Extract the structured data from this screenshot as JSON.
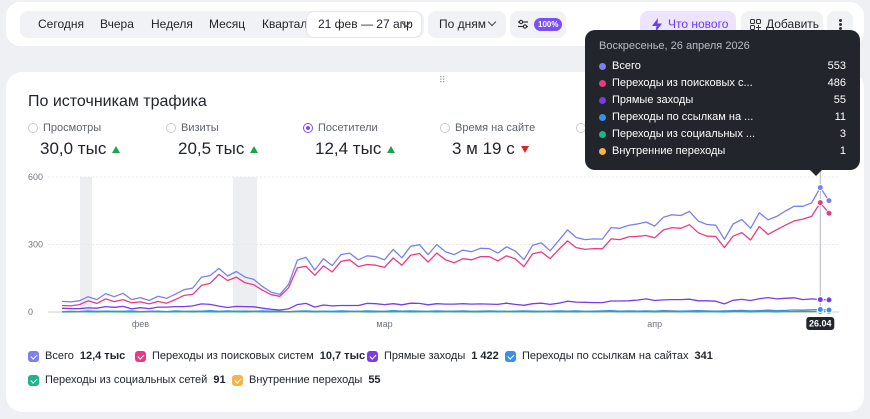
{
  "toolbar": {
    "periods": [
      "Сегодня",
      "Вчера",
      "Неделя",
      "Месяц",
      "Квартал"
    ],
    "date_range": "21 фев — 27 апр",
    "detail": "По дням",
    "sample_badge": "100%",
    "whats_new": "Что нового",
    "add": "Добавить"
  },
  "card": {
    "title": "По источникам трафика",
    "metrics": [
      {
        "label": "Просмотры",
        "value": "30,0 тыс",
        "trend": "up",
        "selected": false
      },
      {
        "label": "Визиты",
        "value": "20,5 тыс",
        "trend": "up",
        "selected": false
      },
      {
        "label": "Посетители",
        "value": "12,4 тыс",
        "trend": "up",
        "selected": true
      },
      {
        "label": "Время на сайте",
        "value": "3 м 19 с",
        "trend": "down",
        "selected": false
      }
    ]
  },
  "chart_data": {
    "type": "line",
    "y_ticks": [
      "0",
      "300",
      "600"
    ],
    "x_ticks": [
      "фев",
      "мар",
      "апр"
    ],
    "ylim": [
      0,
      600
    ],
    "hover_date_tag": "26.04",
    "series": [
      {
        "name": "Всего",
        "color": "#7b7ff0",
        "values": [
          47,
          45,
          50,
          68,
          55,
          82,
          68,
          83,
          55,
          64,
          51,
          70,
          61,
          79,
          99,
          106,
          155,
          162,
          194,
          160,
          180,
          155,
          145,
          113,
          88,
          78,
          123,
          230,
          243,
          186,
          237,
          206,
          255,
          262,
          232,
          250,
          246,
          232,
          278,
          241,
          292,
          299,
          255,
          300,
          268,
          255,
          275,
          268,
          283,
          282,
          262,
          290,
          271,
          233,
          297,
          307,
          272,
          318,
          365,
          331,
          322,
          325,
          324,
          375,
          372,
          385,
          391,
          400,
          382,
          421,
          432,
          429,
          447,
          404,
          389,
          386,
          323,
          391,
          411,
          372,
          441,
          410,
          425,
          449,
          470,
          470,
          485,
          553,
          495
        ]
      },
      {
        "name": "Переходы из поисковых систем",
        "color": "#ea3a84",
        "values": [
          29,
          27,
          33,
          50,
          38,
          58,
          46,
          55,
          41,
          45,
          36,
          47,
          39,
          55,
          74,
          78,
          118,
          128,
          167,
          140,
          155,
          130,
          121,
          97,
          77,
          70,
          108,
          196,
          203,
          163,
          205,
          178,
          225,
          232,
          202,
          211,
          208,
          198,
          240,
          208,
          252,
          260,
          222,
          262,
          232,
          219,
          237,
          232,
          246,
          246,
          227,
          250,
          236,
          202,
          259,
          267,
          237,
          278,
          316,
          286,
          278,
          282,
          281,
          325,
          322,
          334,
          336,
          340,
          330,
          365,
          375,
          372,
          388,
          352,
          337,
          336,
          286,
          337,
          353,
          320,
          380,
          345,
          366,
          386,
          405,
          413,
          425,
          486,
          439
        ]
      },
      {
        "name": "Прямые заходы",
        "color": "#7a3ce8",
        "values": [
          17,
          15,
          15,
          18,
          17,
          24,
          21,
          25,
          14,
          19,
          15,
          22,
          22,
          24,
          24,
          27,
          36,
          34,
          26,
          20,
          25,
          24,
          23,
          17,
          12,
          9,
          14,
          33,
          38,
          22,
          31,
          27,
          29,
          29,
          29,
          38,
          37,
          33,
          37,
          32,
          39,
          38,
          32,
          37,
          35,
          35,
          37,
          35,
          36,
          35,
          34,
          39,
          34,
          30,
          37,
          39,
          34,
          39,
          48,
          44,
          43,
          42,
          42,
          49,
          49,
          50,
          53,
          58,
          51,
          54,
          55,
          55,
          57,
          50,
          50,
          48,
          36,
          52,
          56,
          51,
          59,
          64,
          58,
          61,
          63,
          55,
          58,
          55,
          54
        ]
      },
      {
        "name": "Переходы по ссылкам на сайтах",
        "color": "#3a8ee8",
        "values": [
          1,
          3,
          2,
          5,
          3,
          4,
          3,
          3,
          5,
          2,
          3,
          4,
          2,
          5,
          3,
          4,
          4,
          6,
          3,
          5,
          3,
          4,
          3,
          5,
          4,
          3,
          2,
          4,
          5,
          3,
          4,
          3,
          5,
          4,
          3,
          5,
          4,
          3,
          6,
          4,
          5,
          4,
          3,
          5,
          4,
          4,
          5,
          3,
          4,
          5,
          4,
          3,
          4,
          5,
          4,
          3,
          4,
          5,
          4,
          5,
          3,
          4,
          5,
          6,
          4,
          5,
          4,
          5,
          4,
          6,
          5,
          4,
          5,
          6,
          5,
          4,
          5,
          6,
          7,
          5,
          6,
          8,
          6,
          7,
          9,
          8,
          10,
          11,
          9
        ]
      },
      {
        "name": "Переходы из социальных сетей",
        "color": "#1fb38a",
        "values": [
          0,
          1,
          2,
          1,
          1,
          2,
          1,
          1,
          0,
          1,
          2,
          1,
          1,
          1,
          2,
          1,
          2,
          1,
          1,
          2,
          1,
          1,
          2,
          1,
          1,
          2,
          1,
          2,
          2,
          1,
          2,
          1,
          1,
          2,
          2,
          1,
          1,
          2,
          1,
          2,
          1,
          1,
          2,
          1,
          2,
          1,
          2,
          1,
          1,
          2,
          1,
          2,
          1,
          2,
          1,
          1,
          2,
          1,
          2,
          1,
          2,
          1,
          2,
          2,
          1,
          2,
          1,
          2,
          1,
          2,
          2,
          1,
          2,
          1,
          2,
          1,
          1,
          2,
          2,
          1,
          2,
          2,
          1,
          2,
          2,
          3,
          2,
          3,
          2
        ]
      },
      {
        "name": "Внутренние переходы",
        "color": "#f5b34a",
        "values": [
          1,
          0,
          1,
          1,
          0,
          1,
          1,
          0,
          1,
          0,
          1,
          1,
          0,
          1,
          1,
          0,
          1,
          1,
          0,
          1,
          1,
          0,
          1,
          1,
          0,
          1,
          0,
          1,
          1,
          0,
          1,
          1,
          0,
          1,
          1,
          0,
          1,
          0,
          1,
          1,
          0,
          1,
          1,
          0,
          1,
          1,
          0,
          1,
          0,
          1,
          1,
          0,
          1,
          1,
          0,
          1,
          1,
          0,
          1,
          0,
          1,
          1,
          0,
          1,
          1,
          0,
          1,
          1,
          0,
          1,
          0,
          1,
          1,
          0,
          1,
          1,
          0,
          1,
          1,
          0,
          1,
          1,
          0,
          1,
          1,
          0,
          1,
          1,
          1
        ]
      }
    ]
  },
  "legend": [
    {
      "name": "Всего",
      "value": "12,4 тыс",
      "color": "#7b7ff0"
    },
    {
      "name": "Переходы из поисковых систем",
      "value": "10,7 тыс",
      "color": "#ea3a84"
    },
    {
      "name": "Прямые заходы",
      "value": "1 422",
      "color": "#7a3ce8"
    },
    {
      "name": "Переходы по ссылкам на сайтах",
      "value": "341",
      "color": "#3a8ee8"
    },
    {
      "name": "Переходы из социальных сетей",
      "value": "91",
      "color": "#1fb38a"
    },
    {
      "name": "Внутренние переходы",
      "value": "55",
      "color": "#f5b34a"
    }
  ],
  "tooltip": {
    "date": "Воскресенье, 26 апреля 2026",
    "rows": [
      {
        "name": "Всего",
        "value": "553",
        "color": "#7b7ff0"
      },
      {
        "name": "Переходы из поисковых с...",
        "value": "486",
        "color": "#ea3a84"
      },
      {
        "name": "Прямые заходы",
        "value": "55",
        "color": "#7a3ce8"
      },
      {
        "name": "Переходы по ссылкам на ...",
        "value": "11",
        "color": "#3a8ee8"
      },
      {
        "name": "Переходы из социальных ...",
        "value": "3",
        "color": "#1fb38a"
      },
      {
        "name": "Внутренние переходы",
        "value": "1",
        "color": "#f5b34a"
      }
    ]
  }
}
